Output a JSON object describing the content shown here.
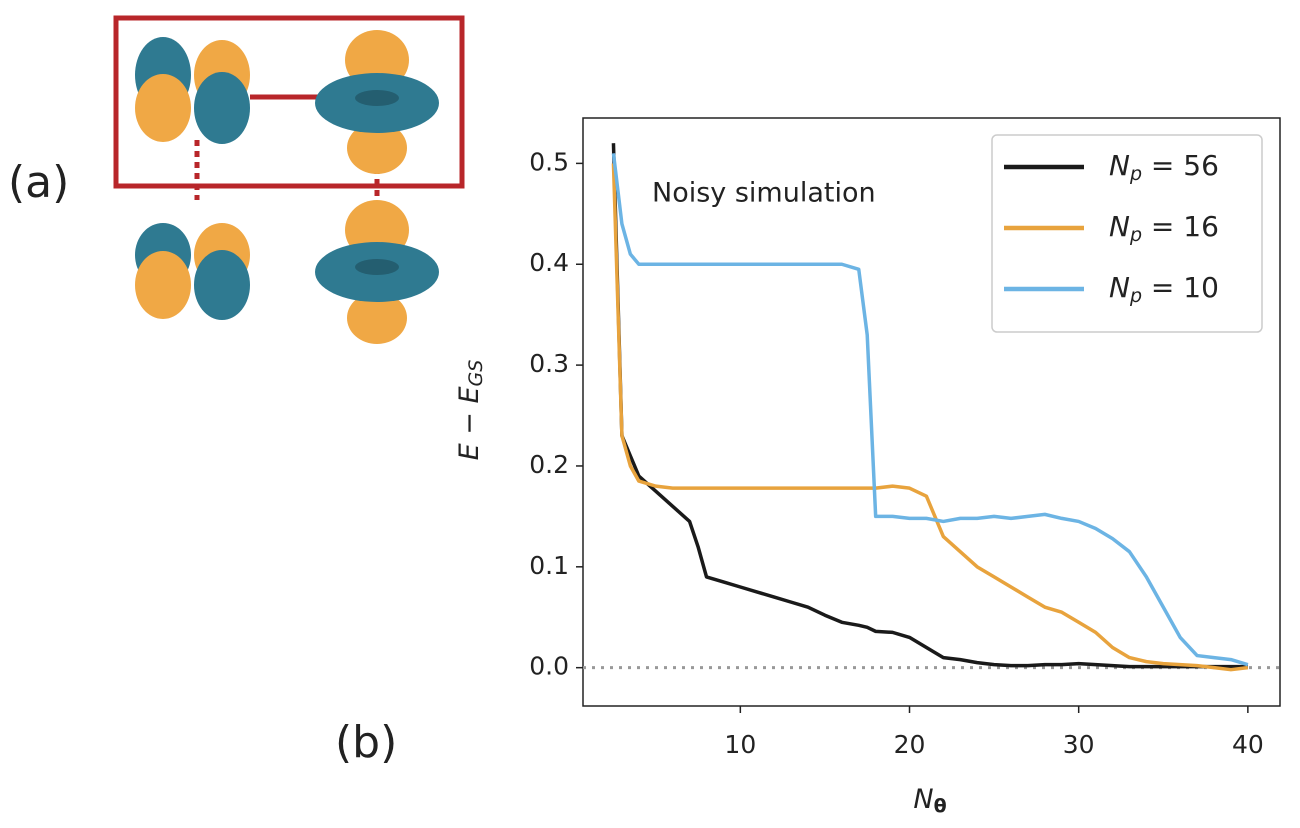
{
  "chart_data": {
    "type": "line",
    "panel_labels": [
      "(a)",
      "(b)"
    ],
    "annotation": "Noisy simulation",
    "xlabel": {
      "text": "N",
      "sub": "θ"
    },
    "ylabel": {
      "text": "E − E",
      "sub": "GS"
    },
    "x": [
      2.5,
      3,
      3.5,
      4,
      5,
      6,
      7,
      7.5,
      8,
      9,
      10,
      11,
      12,
      13,
      14,
      15,
      16,
      17,
      17.5,
      18,
      19,
      20,
      21,
      22,
      23,
      24,
      25,
      26,
      27,
      28,
      29,
      30,
      31,
      32,
      33,
      34,
      35,
      36,
      37,
      38,
      39,
      40
    ],
    "series": [
      {
        "name": {
          "text": "N",
          "sub": "p",
          "after": " = 56"
        },
        "color": "#1a1a1a",
        "values": [
          0.52,
          0.23,
          0.21,
          0.19,
          0.175,
          0.16,
          0.145,
          0.12,
          0.09,
          0.085,
          0.08,
          0.075,
          0.07,
          0.065,
          0.06,
          0.052,
          0.045,
          0.042,
          0.04,
          0.036,
          0.035,
          0.03,
          0.02,
          0.01,
          0.008,
          0.005,
          0.003,
          0.002,
          0.002,
          0.003,
          0.003,
          0.004,
          0.003,
          0.002,
          0.001,
          0.001,
          0.001,
          0.001,
          0.001,
          0.001,
          0.001,
          0.001
        ]
      },
      {
        "name": {
          "text": "N",
          "sub": "p",
          "after": " = 16"
        },
        "color": "#e8a33d",
        "values": [
          0.5,
          0.23,
          0.2,
          0.185,
          0.18,
          0.178,
          0.178,
          0.178,
          0.178,
          0.178,
          0.178,
          0.178,
          0.178,
          0.178,
          0.178,
          0.178,
          0.178,
          0.178,
          0.178,
          0.178,
          0.18,
          0.178,
          0.17,
          0.13,
          0.115,
          0.1,
          0.09,
          0.08,
          0.07,
          0.06,
          0.055,
          0.045,
          0.035,
          0.02,
          0.01,
          0.006,
          0.004,
          0.003,
          0.002,
          0,
          -0.002,
          0
        ]
      },
      {
        "name": {
          "text": "N",
          "sub": "p",
          "after": " = 10"
        },
        "color": "#6cb4e4",
        "values": [
          0.51,
          0.44,
          0.41,
          0.4,
          0.4,
          0.4,
          0.4,
          0.4,
          0.4,
          0.4,
          0.4,
          0.4,
          0.4,
          0.4,
          0.4,
          0.4,
          0.4,
          0.395,
          0.33,
          0.15,
          0.15,
          0.148,
          0.148,
          0.145,
          0.148,
          0.148,
          0.15,
          0.148,
          0.15,
          0.152,
          0.148,
          0.145,
          0.138,
          0.128,
          0.115,
          0.09,
          0.06,
          0.03,
          0.012,
          0.01,
          0.008,
          0.003
        ]
      }
    ],
    "xlim": [
      0.7,
      41.9
    ],
    "ylim": [
      -0.038,
      0.545
    ],
    "xticks": [
      10,
      20,
      30,
      40
    ],
    "yticks": [
      {
        "value": 0,
        "label": "0.0"
      },
      0.1,
      0.2,
      0.3,
      0.4,
      0.5
    ],
    "hline": {
      "value": 0,
      "color": "#999999"
    },
    "legend": "upper right",
    "grid": false
  }
}
